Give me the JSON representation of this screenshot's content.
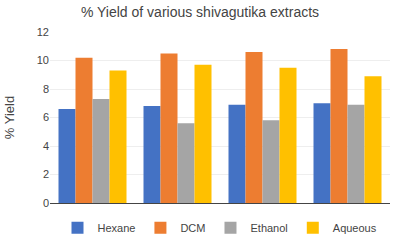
{
  "chart_data": {
    "type": "bar",
    "title": "% Yield of various shivagutika extracts",
    "ylabel": "% Yield",
    "categories": [
      null,
      null,
      null,
      null
    ],
    "series": [
      {
        "name": "Hexane",
        "color": "#4472C4",
        "values": [
          6.6,
          6.8,
          6.9,
          7.0
        ]
      },
      {
        "name": "DCM",
        "color": "#ED7D31",
        "values": [
          10.2,
          10.5,
          10.6,
          10.8
        ]
      },
      {
        "name": "Ethanol",
        "color": "#A5A5A5",
        "values": [
          7.3,
          5.6,
          5.8,
          6.9
        ]
      },
      {
        "name": "Aqueous",
        "color": "#FFC000",
        "values": [
          9.3,
          9.7,
          9.5,
          8.9
        ]
      }
    ],
    "ylim": [
      0,
      12
    ],
    "yticks": [
      0,
      2,
      4,
      6,
      8,
      10,
      12
    ],
    "grid": true,
    "legend": "bottom",
    "tick_labels": "y"
  }
}
